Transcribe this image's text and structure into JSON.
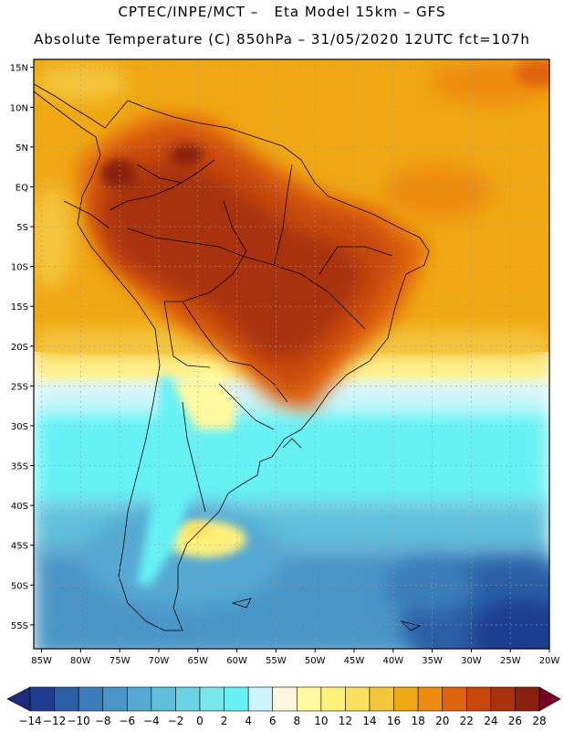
{
  "header": {
    "line1": "CPTEC/INPE/MCT –   Eta Model 15km – GFS",
    "line2": "Absolute Temperature (C) 850hPa – 31/05/2020 12UTC fct=107h"
  },
  "map": {
    "lat_range": [
      -58,
      16
    ],
    "lon_range": [
      -86,
      -20
    ],
    "lat_ticks": [
      {
        "v": 15,
        "label": "15N"
      },
      {
        "v": 10,
        "label": "10N"
      },
      {
        "v": 5,
        "label": "5N"
      },
      {
        "v": 0,
        "label": "EQ"
      },
      {
        "v": -5,
        "label": "5S"
      },
      {
        "v": -10,
        "label": "10S"
      },
      {
        "v": -15,
        "label": "15S"
      },
      {
        "v": -20,
        "label": "20S"
      },
      {
        "v": -25,
        "label": "25S"
      },
      {
        "v": -30,
        "label": "30S"
      },
      {
        "v": -35,
        "label": "35S"
      },
      {
        "v": -40,
        "label": "40S"
      },
      {
        "v": -45,
        "label": "45S"
      },
      {
        "v": -50,
        "label": "50S"
      },
      {
        "v": -55,
        "label": "55S"
      }
    ],
    "lon_ticks": [
      {
        "v": -85,
        "label": "85W"
      },
      {
        "v": -80,
        "label": "80W"
      },
      {
        "v": -75,
        "label": "75W"
      },
      {
        "v": -70,
        "label": "70W"
      },
      {
        "v": -65,
        "label": "65W"
      },
      {
        "v": -60,
        "label": "60W"
      },
      {
        "v": -55,
        "label": "55W"
      },
      {
        "v": -50,
        "label": "50W"
      },
      {
        "v": -45,
        "label": "45W"
      },
      {
        "v": -40,
        "label": "40W"
      },
      {
        "v": -35,
        "label": "35W"
      },
      {
        "v": -30,
        "label": "30W"
      },
      {
        "v": -25,
        "label": "25W"
      },
      {
        "v": -20,
        "label": "20W"
      }
    ]
  },
  "colorbar": {
    "labels": [
      "-14",
      "-12",
      "-10",
      "-8",
      "-6",
      "-4",
      "-2",
      "0",
      "2",
      "4",
      "6",
      "8",
      "10",
      "12",
      "14",
      "16",
      "18",
      "20",
      "22",
      "24",
      "26",
      "28"
    ],
    "colors": [
      "#1f3d8f",
      "#2a5fa6",
      "#3a7dbb",
      "#4a95c8",
      "#55a9d3",
      "#5fc0db",
      "#6ad4e4",
      "#7ae6ee",
      "#66f2f5",
      "#ccf4fb",
      "#fff6e0",
      "#fffaa0",
      "#fff07a",
      "#fbe060",
      "#f4c63c",
      "#f0a814",
      "#ee8c10",
      "#e0640c",
      "#c8480a",
      "#a8320c",
      "#8a200e"
    ],
    "under_color": "#1f2a7a",
    "over_color": "#7a0026"
  }
}
